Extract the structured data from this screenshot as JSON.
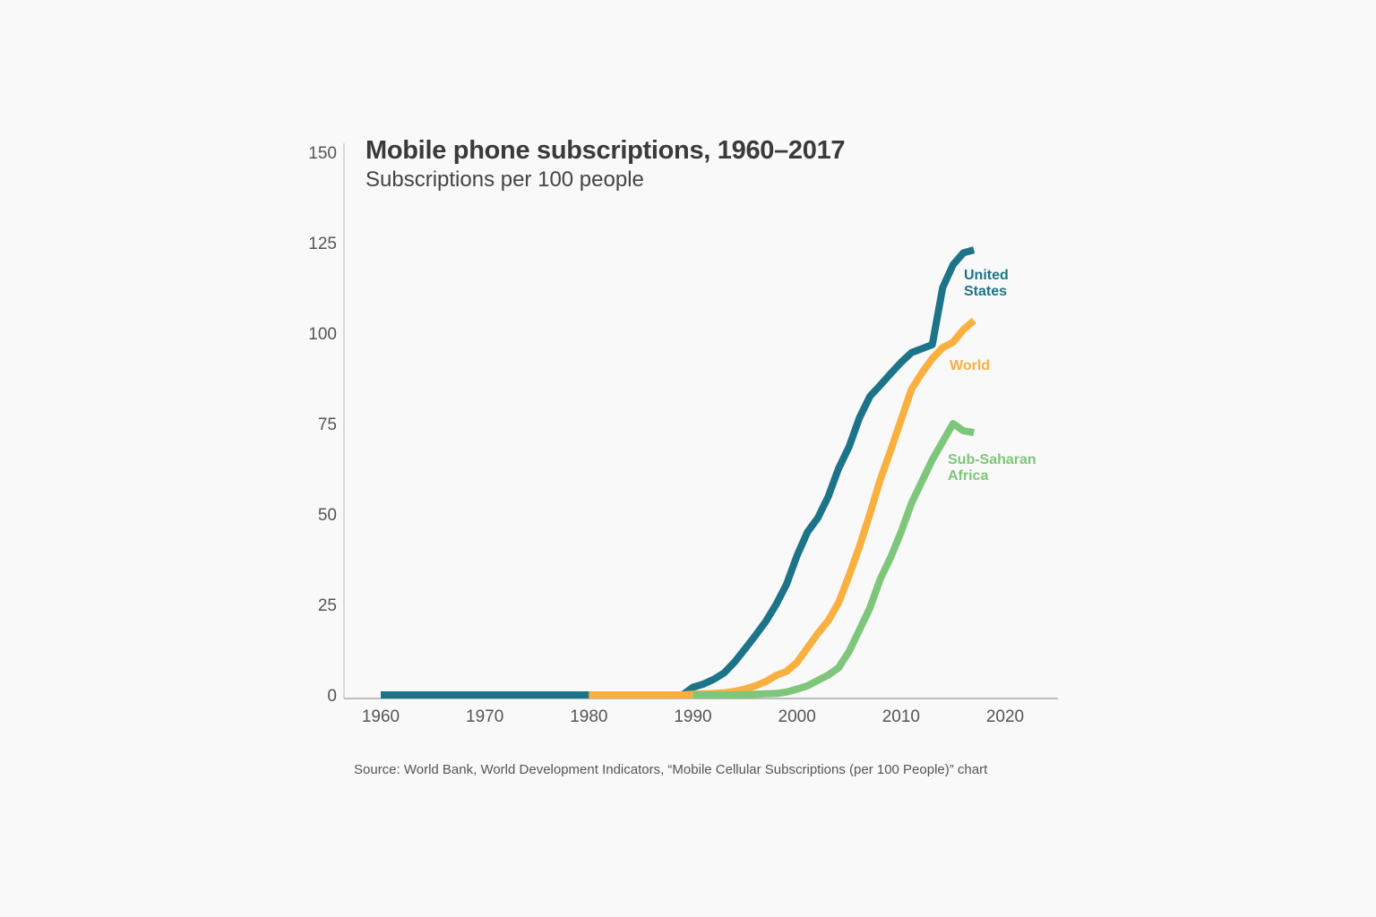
{
  "chart_data": {
    "type": "line",
    "title": "Mobile phone subscriptions, 1960–2017",
    "subtitle": "Subscriptions per 100 people",
    "source": "Source: World Bank, World Development Indicators, “Mobile Cellular Subscriptions (per 100 People)” chart",
    "xlim": [
      1960,
      2025
    ],
    "ylim": [
      0,
      150
    ],
    "x_ticks": [
      1960,
      1970,
      1980,
      1990,
      2000,
      2010,
      2020
    ],
    "y_ticks": [
      0,
      25,
      50,
      75,
      100,
      125,
      150
    ],
    "grid": false,
    "series": [
      {
        "name": "United States",
        "label_lines": [
          "United",
          "States"
        ],
        "color": "#1d7489",
        "start_year": 1960,
        "values": [
          0,
          0,
          0,
          0,
          0,
          0,
          0,
          0,
          0,
          0,
          0,
          0,
          0,
          0,
          0,
          0,
          0,
          0,
          0,
          0,
          0,
          0,
          0,
          0,
          0,
          0,
          0,
          0,
          0,
          0,
          2.1,
          3.0,
          4.3,
          6.1,
          9.1,
          12.7,
          16.4,
          20.3,
          25.0,
          30.6,
          38.5,
          45.0,
          48.9,
          54.8,
          62.6,
          68.6,
          76.6,
          82.5,
          85.6,
          88.8,
          91.9,
          94.6,
          95.7,
          96.8,
          112.6,
          118.9,
          122.2,
          123.0
        ]
      },
      {
        "name": "World",
        "label_lines": [
          "World"
        ],
        "color": "#f9b03f",
        "start_year": 1980,
        "values": [
          0,
          0,
          0,
          0,
          0,
          0,
          0,
          0,
          0,
          0,
          0.2,
          0.3,
          0.4,
          0.6,
          1.0,
          1.6,
          2.5,
          3.7,
          5.4,
          6.5,
          9.0,
          13.0,
          17.0,
          20.5,
          25.5,
          33.0,
          41.0,
          50.0,
          59.5,
          67.6,
          76.0,
          84.5,
          89.0,
          93.0,
          96.0,
          97.5,
          101.0,
          103.5
        ]
      },
      {
        "name": "Sub-Saharan Africa",
        "label_lines": [
          "Sub-Saharan",
          "Africa"
        ],
        "color": "#7dc67a",
        "start_year": 1990,
        "values": [
          0,
          0,
          0,
          0,
          0,
          0.1,
          0.2,
          0.3,
          0.4,
          0.8,
          1.6,
          2.5,
          4.0,
          5.5,
          7.5,
          12.0,
          18.0,
          24.0,
          32.0,
          38.0,
          45.0,
          53.0,
          59.0,
          65.0,
          70.0,
          75.0,
          73.0,
          72.5
        ]
      }
    ]
  }
}
